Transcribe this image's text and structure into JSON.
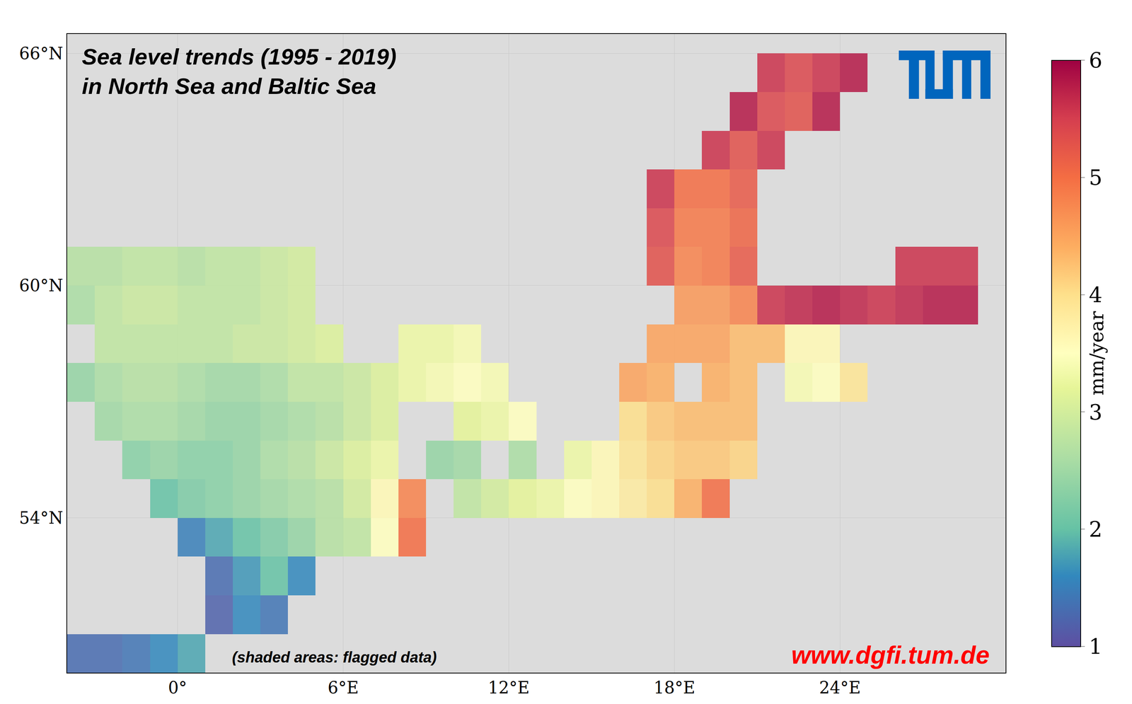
{
  "chart_data": {
    "type": "heatmap",
    "title": "Sea level trends (1995 - 2019)\nin North Sea and Baltic Sea",
    "annotations": [
      "(shaded areas: flagged data)",
      "www.dgfi.tum.de"
    ],
    "grid": true,
    "x": [
      -3.5,
      -2.5,
      -1.5,
      -0.5,
      0.5,
      1.5,
      2.5,
      3.5,
      4.5,
      5.5,
      6.5,
      7.5,
      8.5,
      9.5,
      10.5,
      11.5,
      12.5,
      13.5,
      14.5,
      15.5,
      16.5,
      17.5,
      18.5,
      19.5,
      20.5,
      21.5,
      22.5,
      23.5,
      24.5,
      25.5,
      26.5,
      27.5,
      28.5,
      29.5
    ],
    "y": [
      50.5,
      51.5,
      52.5,
      53.5,
      54.5,
      55.5,
      56.5,
      57.5,
      58.5,
      59.5,
      60.5,
      61.5,
      62.5,
      63.5,
      64.5,
      65.5
    ],
    "z": [
      [
        1.3,
        1.3,
        1.4,
        1.6,
        1.8,
        null,
        null,
        null,
        null,
        null,
        null,
        null,
        null,
        null,
        null,
        null,
        null,
        null,
        null,
        null,
        null,
        null,
        null,
        null,
        null,
        null,
        null,
        null,
        null,
        null,
        null,
        null,
        null,
        null
      ],
      [
        null,
        null,
        null,
        null,
        null,
        1.2,
        1.6,
        1.4,
        null,
        null,
        null,
        null,
        null,
        null,
        null,
        null,
        null,
        null,
        null,
        null,
        null,
        null,
        null,
        null,
        null,
        null,
        null,
        null,
        null,
        null,
        null,
        null,
        null,
        null
      ],
      [
        null,
        null,
        null,
        null,
        null,
        1.3,
        1.7,
        2.0,
        1.6,
        null,
        null,
        null,
        null,
        null,
        null,
        null,
        null,
        null,
        null,
        null,
        null,
        null,
        null,
        null,
        null,
        null,
        null,
        null,
        null,
        null,
        null,
        null,
        null,
        null
      ],
      [
        null,
        null,
        null,
        null,
        1.5,
        1.8,
        2.0,
        2.2,
        2.4,
        2.7,
        2.8,
        3.5,
        5.0,
        null,
        null,
        null,
        null,
        null,
        null,
        null,
        null,
        null,
        null,
        null,
        null,
        null,
        null,
        null,
        null,
        null,
        null,
        null,
        null,
        null
      ],
      [
        null,
        null,
        null,
        2.0,
        2.2,
        2.3,
        2.4,
        2.5,
        2.6,
        2.7,
        3.0,
        3.6,
        4.8,
        null,
        2.8,
        3.0,
        3.2,
        3.3,
        3.5,
        3.6,
        3.8,
        4.0,
        4.4,
        5.0,
        null,
        null,
        null,
        null,
        null,
        null,
        null,
        null,
        null,
        null
      ],
      [
        null,
        null,
        2.3,
        2.4,
        2.3,
        2.3,
        2.4,
        2.6,
        2.7,
        2.9,
        3.1,
        3.3,
        null,
        2.4,
        2.5,
        null,
        2.6,
        null,
        3.3,
        3.6,
        3.9,
        4.1,
        4.2,
        4.2,
        4.1,
        null,
        null,
        null,
        null,
        null,
        null,
        null,
        null,
        null
      ],
      [
        null,
        2.5,
        2.6,
        2.6,
        2.5,
        2.4,
        2.4,
        2.5,
        2.6,
        2.7,
        2.9,
        3.1,
        null,
        null,
        3.2,
        3.3,
        3.5,
        null,
        null,
        null,
        4.0,
        4.2,
        4.3,
        4.3,
        4.3,
        null,
        null,
        null,
        null,
        null,
        null,
        null,
        null,
        null
      ],
      [
        2.4,
        2.6,
        2.7,
        2.7,
        2.6,
        2.5,
        2.5,
        2.6,
        2.8,
        2.8,
        2.9,
        3.1,
        3.3,
        3.4,
        3.5,
        3.4,
        null,
        null,
        null,
        null,
        4.5,
        4.4,
        null,
        4.4,
        4.3,
        null,
        3.4,
        3.5,
        3.9,
        null,
        null,
        null,
        null,
        null
      ],
      [
        null,
        2.8,
        2.8,
        2.8,
        2.8,
        2.8,
        2.9,
        2.9,
        3.0,
        3.1,
        null,
        null,
        3.3,
        3.3,
        3.4,
        null,
        null,
        null,
        null,
        null,
        null,
        4.5,
        4.5,
        4.5,
        4.3,
        4.3,
        3.6,
        3.6,
        null,
        null,
        null,
        null,
        null,
        null
      ],
      [
        2.6,
        2.8,
        2.9,
        2.9,
        2.8,
        2.8,
        2.8,
        2.9,
        3.0,
        null,
        null,
        null,
        null,
        null,
        null,
        null,
        null,
        null,
        null,
        null,
        null,
        null,
        4.6,
        4.6,
        4.8,
        5.6,
        5.7,
        5.8,
        5.7,
        5.6,
        5.7,
        5.8,
        5.8,
        null
      ],
      [
        2.7,
        2.7,
        2.8,
        2.8,
        2.7,
        2.8,
        2.8,
        2.9,
        3.0,
        null,
        null,
        null,
        null,
        null,
        null,
        null,
        null,
        null,
        null,
        null,
        null,
        5.3,
        4.8,
        4.9,
        5.2,
        null,
        null,
        null,
        null,
        null,
        5.6,
        5.6,
        5.6,
        null
      ],
      [
        null,
        null,
        null,
        null,
        null,
        null,
        null,
        null,
        null,
        null,
        null,
        null,
        null,
        null,
        null,
        null,
        null,
        null,
        null,
        null,
        null,
        5.4,
        4.9,
        4.9,
        5.1,
        null,
        null,
        null,
        null,
        null,
        null,
        null,
        null,
        null
      ],
      [
        null,
        null,
        null,
        null,
        null,
        null,
        null,
        null,
        null,
        null,
        null,
        null,
        null,
        null,
        null,
        null,
        null,
        null,
        null,
        null,
        null,
        5.6,
        5.0,
        5.0,
        5.2,
        null,
        null,
        null,
        null,
        null,
        null,
        null,
        null,
        null
      ],
      [
        null,
        null,
        null,
        null,
        null,
        null,
        null,
        null,
        null,
        null,
        null,
        null,
        null,
        null,
        null,
        null,
        null,
        null,
        null,
        null,
        null,
        null,
        null,
        5.6,
        5.3,
        5.6,
        null,
        null,
        null,
        null,
        null,
        null,
        null,
        null
      ],
      [
        null,
        null,
        null,
        null,
        null,
        null,
        null,
        null,
        null,
        null,
        null,
        null,
        null,
        null,
        null,
        null,
        null,
        null,
        null,
        null,
        null,
        null,
        null,
        null,
        5.8,
        5.4,
        5.3,
        5.8,
        null,
        null,
        null,
        null,
        null,
        null
      ],
      [
        null,
        null,
        null,
        null,
        null,
        null,
        null,
        null,
        null,
        null,
        null,
        null,
        null,
        null,
        null,
        null,
        null,
        null,
        null,
        null,
        null,
        null,
        null,
        null,
        null,
        5.6,
        5.4,
        5.6,
        5.8,
        null,
        null,
        null,
        null,
        null
      ]
    ],
    "xlim": [
      -4,
      30
    ],
    "xticks": [
      {
        "value": 0,
        "label": "0°"
      },
      {
        "value": 6,
        "label": "6°E"
      },
      {
        "value": 12,
        "label": "12°E"
      },
      {
        "value": 18,
        "label": "18°E"
      },
      {
        "value": 24,
        "label": "24°E"
      }
    ],
    "ylim": [
      50,
      66.5
    ],
    "yticks": [
      {
        "value": 54,
        "label": "54°N"
      },
      {
        "value": 60,
        "label": "60°N"
      },
      {
        "value": 66,
        "label": "66°N"
      }
    ],
    "colorbar": {
      "title": "mm/year",
      "range": [
        1,
        6
      ],
      "ticks": [
        1,
        2,
        3,
        4,
        5,
        6
      ]
    }
  }
}
